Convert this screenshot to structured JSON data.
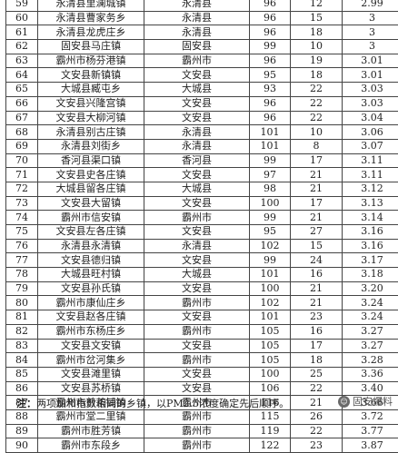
{
  "table": {
    "rows": [
      {
        "idx": "59",
        "town": "永清县里澜城镇",
        "county": "永清县",
        "index": "96",
        "pm": "12",
        "score": "2.99"
      },
      {
        "idx": "60",
        "town": "永清县曹家务乡",
        "county": "永清县",
        "index": "96",
        "pm": "15",
        "score": "3"
      },
      {
        "idx": "61",
        "town": "永清县龙虎庄乡",
        "county": "永清县",
        "index": "96",
        "pm": "18",
        "score": "3"
      },
      {
        "idx": "62",
        "town": "固安县马庄镇",
        "county": "固安县",
        "index": "99",
        "pm": "10",
        "score": "3"
      },
      {
        "idx": "63",
        "town": "霸州市杨芬港镇",
        "county": "霸州市",
        "index": "96",
        "pm": "19",
        "score": "3.01"
      },
      {
        "idx": "64",
        "town": "文安县新镇镇",
        "county": "文安县",
        "index": "95",
        "pm": "18",
        "score": "3.01"
      },
      {
        "idx": "65",
        "town": "大城县臧屯乡",
        "county": "大城县",
        "index": "93",
        "pm": "22",
        "score": "3.03"
      },
      {
        "idx": "66",
        "town": "文安县兴隆宫镇",
        "county": "文安县",
        "index": "96",
        "pm": "22",
        "score": "3.03"
      },
      {
        "idx": "67",
        "town": "文安县大柳河镇",
        "county": "文安县",
        "index": "96",
        "pm": "22",
        "score": "3.04"
      },
      {
        "idx": "68",
        "town": "永清县别古庄镇",
        "county": "永清县",
        "index": "101",
        "pm": "10",
        "score": "3.06"
      },
      {
        "idx": "69",
        "town": "永清县刘街乡",
        "county": "永清县",
        "index": "101",
        "pm": "8",
        "score": "3.07"
      },
      {
        "idx": "70",
        "town": "香河县渠口镇",
        "county": "香河县",
        "index": "99",
        "pm": "17",
        "score": "3.11"
      },
      {
        "idx": "71",
        "town": "文安县史各庄镇",
        "county": "文安县",
        "index": "97",
        "pm": "21",
        "score": "3.11"
      },
      {
        "idx": "72",
        "town": "大城县留各庄镇",
        "county": "大城县",
        "index": "98",
        "pm": "21",
        "score": "3.12"
      },
      {
        "idx": "73",
        "town": "文安县大留镇",
        "county": "文安县",
        "index": "100",
        "pm": "17",
        "score": "3.13"
      },
      {
        "idx": "74",
        "town": "霸州市信安镇",
        "county": "霸州市",
        "index": "99",
        "pm": "21",
        "score": "3.14"
      },
      {
        "idx": "75",
        "town": "文安县左各庄镇",
        "county": "文安县",
        "index": "95",
        "pm": "27",
        "score": "3.16"
      },
      {
        "idx": "76",
        "town": "永清县永清镇",
        "county": "永清县",
        "index": "102",
        "pm": "15",
        "score": "3.16"
      },
      {
        "idx": "77",
        "town": "文安县德归镇",
        "county": "文安县",
        "index": "99",
        "pm": "24",
        "score": "3.17"
      },
      {
        "idx": "78",
        "town": "大城县旺村镇",
        "county": "大城县",
        "index": "101",
        "pm": "16",
        "score": "3.18"
      },
      {
        "idx": "79",
        "town": "文安县孙氏镇",
        "county": "文安县",
        "index": "100",
        "pm": "21",
        "score": "3.20"
      },
      {
        "idx": "80",
        "town": "霸州市康仙庄乡",
        "county": "霸州市",
        "index": "102",
        "pm": "21",
        "score": "3.24"
      },
      {
        "idx": "81",
        "town": "文安县赵各庄镇",
        "county": "文安县",
        "index": "101",
        "pm": "23",
        "score": "3.24"
      },
      {
        "idx": "82",
        "town": "霸州市东杨庄乡",
        "county": "霸州市",
        "index": "105",
        "pm": "16",
        "score": "3.27"
      },
      {
        "idx": "83",
        "town": "文安县文安镇",
        "county": "文安县",
        "index": "105",
        "pm": "17",
        "score": "3.27"
      },
      {
        "idx": "84",
        "town": "霸州市岔河集乡",
        "county": "霸州市",
        "index": "105",
        "pm": "18",
        "score": "3.28"
      },
      {
        "idx": "85",
        "town": "文安县滩里镇",
        "county": "文安县",
        "index": "100",
        "pm": "25",
        "score": "3.36"
      },
      {
        "idx": "86",
        "town": "文安县苏桥镇",
        "county": "文安县",
        "index": "106",
        "pm": "22",
        "score": "3.40"
      },
      {
        "idx": "87",
        "town": "霸州市煎茶铺镇",
        "county": "霸州市",
        "index": "116",
        "pm": "21",
        "score": "3.66"
      },
      {
        "idx": "88",
        "town": "霸州市堂二里镇",
        "county": "霸州市",
        "index": "115",
        "pm": "26",
        "score": "3.72"
      },
      {
        "idx": "89",
        "town": "霸州市胜芳镇",
        "county": "霸州市",
        "index": "119",
        "pm": "22",
        "score": "3.77"
      },
      {
        "idx": "90",
        "town": "霸州市东段乡",
        "county": "霸州市",
        "index": "122",
        "pm": "23",
        "score": "3.87"
      }
    ]
  },
  "footer": {
    "note_label": "注：",
    "note_text": "两项加和指数相同的乡镇，以PM2.5浓度确定先后顺序。"
  },
  "watermark": {
    "icon_text": "☺",
    "text": "固安爆料"
  }
}
